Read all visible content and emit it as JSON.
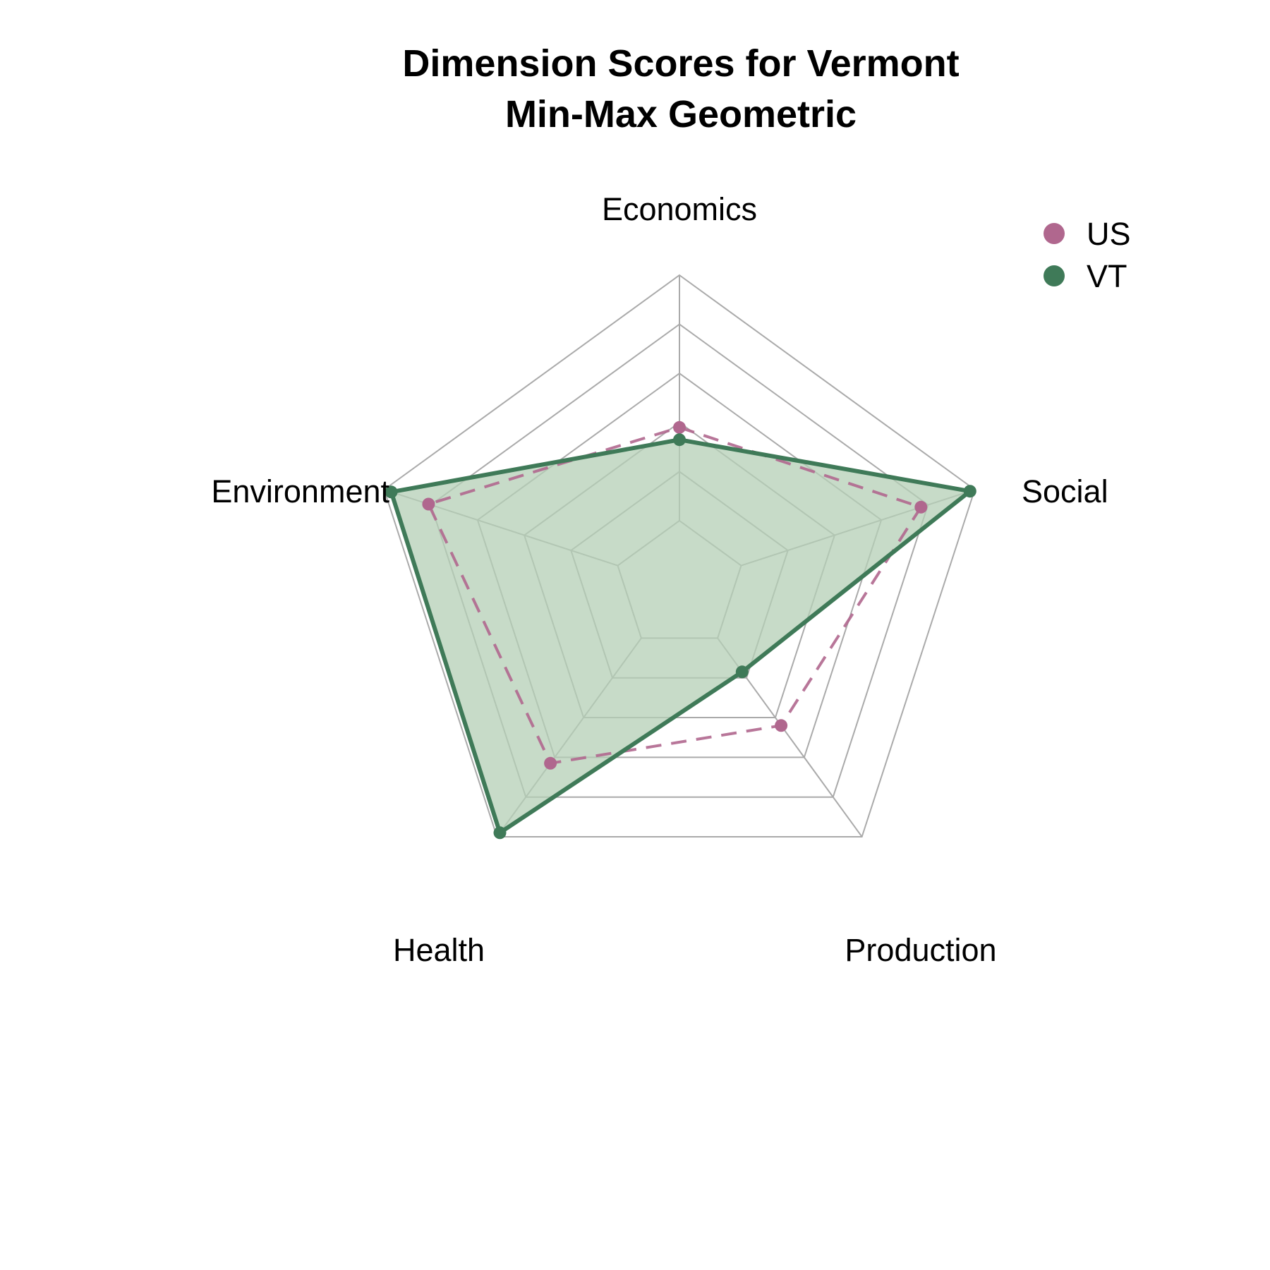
{
  "chart_data": {
    "type": "radar",
    "title": "Dimension Scores for Vermont",
    "subtitle": "Min-Max Geometric",
    "axes": [
      "Economics",
      "Social",
      "Production",
      "Health",
      "Environment"
    ],
    "range": [
      0,
      1
    ],
    "grid_levels": [
      0.2,
      0.4,
      0.6,
      0.8,
      1.0
    ],
    "legend_position": "top-right",
    "series": [
      {
        "name": "US",
        "values": [
          0.38,
          0.77,
          0.44,
          0.63,
          0.81
        ],
        "color": "#b0678e",
        "line_style": "dashed",
        "filled": false
      },
      {
        "name": "VT",
        "values": [
          0.33,
          0.98,
          0.17,
          0.98,
          0.97
        ],
        "color": "#3f7a58",
        "line_style": "solid",
        "filled": true,
        "fill_color": "#b4cfb6"
      }
    ]
  }
}
